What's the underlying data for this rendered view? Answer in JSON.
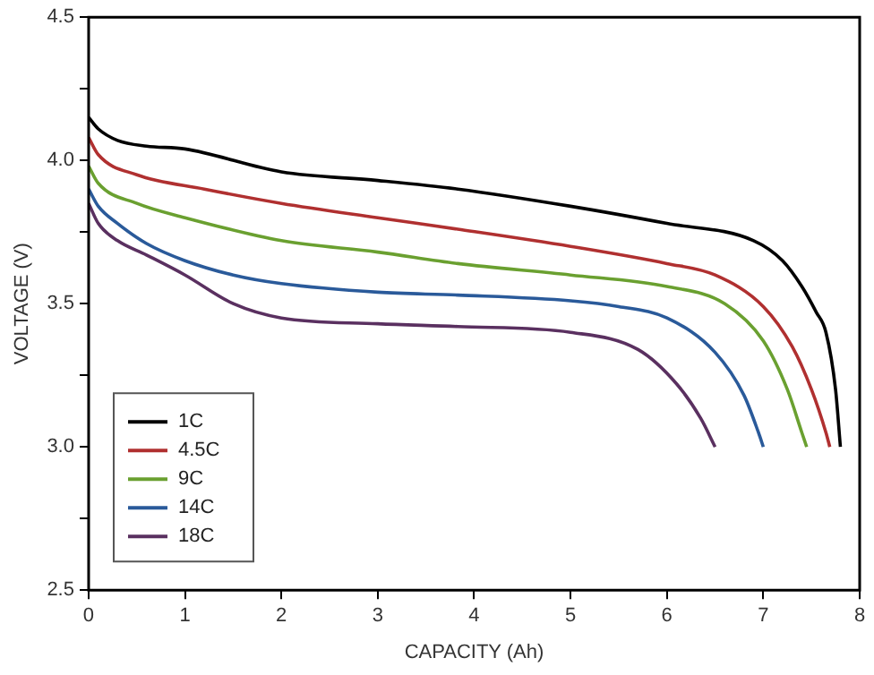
{
  "chart_data": {
    "type": "line",
    "xlabel": "CAPACITY (Ah)",
    "ylabel": "VOLTAGE (V)",
    "xlim": [
      0,
      8
    ],
    "xticks": [
      0,
      1,
      2,
      3,
      4,
      5,
      6,
      7,
      8
    ],
    "ylim": [
      2.5,
      4.5
    ],
    "yticks": [
      2.5,
      {
        "value": 2.75,
        "label": null
      },
      {
        "value": 3,
        "label": "3.0"
      },
      {
        "value": 3.25,
        "label": null
      },
      3.5,
      {
        "value": 3.75,
        "label": null
      },
      {
        "value": 4,
        "label": "4.0"
      },
      {
        "value": 4.25,
        "label": null
      },
      4.5
    ],
    "grid": false,
    "legend": "bottom left",
    "marker": "none",
    "line_style": "solid",
    "series": [
      {
        "name": "1C",
        "color": "#000000",
        "x": [
          0,
          0.1,
          0.3,
          0.6,
          1,
          2,
          3,
          3.83,
          5,
          6,
          6.9,
          7.2,
          7.4,
          7.55,
          7.65,
          7.75,
          7.8
        ],
        "values": [
          4.15,
          4.11,
          4.07,
          4.05,
          4.04,
          3.96,
          3.93,
          3.9,
          3.84,
          3.78,
          3.72,
          3.65,
          3.56,
          3.47,
          3.4,
          3.2,
          3.0
        ]
      },
      {
        "name": "4.5C",
        "color": "#b03030",
        "x": [
          0,
          0.1,
          0.5,
          1.2,
          2,
          3,
          3.83,
          5,
          6,
          6.5,
          7.0,
          7.3,
          7.5,
          7.65,
          7.69
        ],
        "values": [
          4.08,
          4.02,
          3.95,
          3.9,
          3.85,
          3.8,
          3.76,
          3.7,
          3.64,
          3.6,
          3.49,
          3.35,
          3.2,
          3.05,
          3.0
        ]
      },
      {
        "name": "9C",
        "color": "#6aa030",
        "x": [
          0,
          0.1,
          0.5,
          1,
          2,
          3,
          3.83,
          5,
          6,
          6.6,
          7.0,
          7.25,
          7.4,
          7.45
        ],
        "values": [
          3.98,
          3.92,
          3.85,
          3.8,
          3.72,
          3.68,
          3.64,
          3.6,
          3.56,
          3.5,
          3.37,
          3.2,
          3.05,
          3.0
        ]
      },
      {
        "name": "14C",
        "color": "#2a5a9a",
        "x": [
          0,
          0.1,
          0.3,
          0.6,
          1,
          1.5,
          2,
          3,
          3.83,
          5,
          5.5,
          6.0,
          6.5,
          6.8,
          6.95,
          7.0
        ],
        "values": [
          3.9,
          3.84,
          3.78,
          3.71,
          3.65,
          3.6,
          3.57,
          3.54,
          3.53,
          3.51,
          3.49,
          3.45,
          3.33,
          3.18,
          3.05,
          3.0
        ]
      },
      {
        "name": "18C",
        "color": "#5a3060",
        "x": [
          0,
          0.1,
          0.3,
          0.6,
          1,
          1.5,
          2,
          3,
          3.83,
          5,
          5.7,
          6.1,
          6.35,
          6.5
        ],
        "values": [
          3.85,
          3.78,
          3.72,
          3.67,
          3.6,
          3.5,
          3.45,
          3.43,
          3.42,
          3.4,
          3.34,
          3.22,
          3.1,
          3.0
        ]
      }
    ]
  }
}
